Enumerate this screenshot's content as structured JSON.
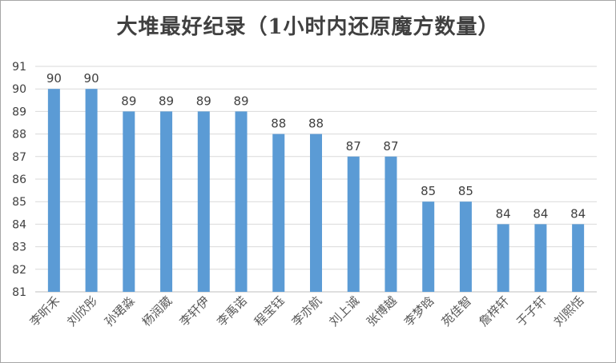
{
  "chart_data": {
    "type": "bar",
    "title": "大堆最好纪录（1小时内还原魔方数量）",
    "categories": [
      "李昕禾",
      "刘欣彤",
      "孙珺淼",
      "杨润葳",
      "李轩伊",
      "李禹诺",
      "程宝钰",
      "李亦航",
      "刘上诚",
      "张博越",
      "李梦晗",
      "苑佳智",
      "詹梓轩",
      "于子轩",
      "刘熙恬"
    ],
    "values": [
      90,
      90,
      89,
      89,
      89,
      89,
      88,
      88,
      87,
      87,
      85,
      85,
      84,
      84,
      84
    ],
    "ylim": [
      81,
      91
    ],
    "yticks": [
      81,
      82,
      83,
      84,
      85,
      86,
      87,
      88,
      89,
      90,
      91
    ],
    "xlabel": "",
    "ylabel": "",
    "grid": true,
    "legend": "none",
    "bar_color": "#5b9bd5",
    "grid_color": "#d9d9d9"
  }
}
